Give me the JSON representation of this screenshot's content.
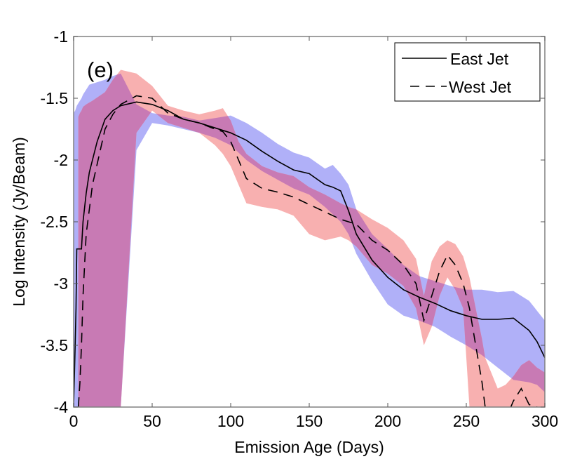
{
  "chart_data": {
    "type": "line",
    "panel_label": "(e)",
    "title": "",
    "xlabel": "Emission Age (Days)",
    "ylabel": "Log Intensity (Jy/Beam)",
    "xlim": [
      0,
      300
    ],
    "ylim": [
      -4,
      -1
    ],
    "xticks": [
      0,
      50,
      100,
      150,
      200,
      250,
      300
    ],
    "xtick_labels": [
      "0",
      "50",
      "100",
      "150",
      "200",
      "250",
      "300"
    ],
    "yticks": [
      -1,
      -1.5,
      -2,
      -2.5,
      -3,
      -3.5,
      -4
    ],
    "ytick_labels": [
      "-1",
      "-1.5",
      "-2",
      "-2.5",
      "-3",
      "-3.5",
      "-4"
    ],
    "grid": false,
    "legend": {
      "position": "top-right",
      "entries": [
        {
          "label": "East Jet",
          "style": "solid"
        },
        {
          "label": "West Jet",
          "style": "dashed"
        }
      ]
    },
    "colors": {
      "east_band": "#b0b0f8",
      "west_band": "#f8b0b0",
      "overlap": "#c87ab4",
      "line": "#000000",
      "axis": "#808080"
    },
    "series": [
      {
        "name": "East Jet",
        "style": "solid",
        "x": [
          0,
          1,
          1.5,
          2,
          5,
          6,
          8,
          10,
          15,
          20,
          25,
          30,
          40,
          50,
          60,
          70,
          80,
          90,
          100,
          110,
          120,
          130,
          140,
          150,
          160,
          165,
          170,
          175,
          180,
          190,
          200,
          210,
          220,
          230,
          240,
          250,
          260,
          270,
          280,
          290,
          295,
          300
        ],
        "y": [
          -4.0,
          -3.5,
          -3.2,
          -2.72,
          -2.72,
          -2.5,
          -2.27,
          -2.1,
          -1.85,
          -1.67,
          -1.6,
          -1.56,
          -1.53,
          -1.55,
          -1.6,
          -1.67,
          -1.7,
          -1.74,
          -1.78,
          -1.84,
          -1.93,
          -2.01,
          -2.08,
          -2.11,
          -2.2,
          -2.22,
          -2.25,
          -2.41,
          -2.6,
          -2.81,
          -2.95,
          -3.05,
          -3.11,
          -3.16,
          -3.22,
          -3.26,
          -3.29,
          -3.29,
          -3.28,
          -3.38,
          -3.47,
          -3.6
        ],
        "band_upper": [
          -1.62,
          -1.6,
          -1.58,
          -1.56,
          -1.5,
          -1.47,
          -1.43,
          -1.39,
          -1.37,
          -1.35,
          -1.32,
          -1.3,
          -1.55,
          -1.62,
          -1.64,
          -1.65,
          -1.68,
          -1.66,
          -1.64,
          -1.7,
          -1.78,
          -1.87,
          -1.94,
          -1.98,
          -2.07,
          -2.04,
          -2.11,
          -2.2,
          -2.4,
          -2.6,
          -2.72,
          -2.85,
          -2.94,
          -2.98,
          -3.02,
          -3.05,
          -3.05,
          -3.07,
          -3.06,
          -3.14,
          -3.22,
          -3.3
        ],
        "band_lower": [
          -4.0,
          -4.0,
          -4.0,
          -4.0,
          -4.0,
          -4.0,
          -4.0,
          -4.0,
          -4.0,
          -4.0,
          -4.0,
          -4.0,
          -1.92,
          -1.7,
          -1.72,
          -1.75,
          -1.78,
          -1.82,
          -1.88,
          -2.0,
          -2.09,
          -2.16,
          -2.23,
          -2.28,
          -2.38,
          -2.44,
          -2.5,
          -2.6,
          -2.76,
          -2.98,
          -3.17,
          -3.26,
          -3.3,
          -3.35,
          -3.43,
          -3.5,
          -3.58,
          -3.68,
          -3.78,
          -3.8,
          -3.82,
          -3.88
        ]
      },
      {
        "name": "West Jet",
        "style": "dashed",
        "x": [
          3,
          4,
          5,
          6,
          8,
          12,
          20,
          25,
          30,
          40,
          50,
          60,
          70,
          80,
          90,
          95,
          100,
          105,
          110,
          120,
          130,
          140,
          150,
          160,
          170,
          175,
          180,
          190,
          200,
          210,
          218,
          223,
          228,
          233,
          238,
          243,
          248,
          252,
          256,
          260,
          262,
          270,
          275,
          280,
          285,
          290,
          295,
          300
        ],
        "y": [
          -4.0,
          -3.8,
          -3.5,
          -3.1,
          -2.6,
          -2.2,
          -1.75,
          -1.63,
          -1.55,
          -1.48,
          -1.5,
          -1.62,
          -1.67,
          -1.7,
          -1.75,
          -1.77,
          -1.85,
          -2.0,
          -2.15,
          -2.23,
          -2.26,
          -2.3,
          -2.36,
          -2.42,
          -2.48,
          -2.5,
          -2.52,
          -2.65,
          -2.73,
          -2.85,
          -3.0,
          -3.3,
          -3.1,
          -2.9,
          -2.77,
          -2.85,
          -3.0,
          -3.2,
          -3.5,
          -3.8,
          -4.0,
          -4.2,
          -4.1,
          -3.95,
          -3.85,
          -3.98,
          -4.0,
          -4.05
        ],
        "band_upper": [
          -1.65,
          -1.62,
          -1.6,
          -1.57,
          -1.55,
          -1.52,
          -1.45,
          -1.35,
          -1.27,
          -1.3,
          -1.4,
          -1.56,
          -1.6,
          -1.63,
          -1.6,
          -1.58,
          -1.68,
          -1.85,
          -1.95,
          -2.05,
          -2.1,
          -2.13,
          -2.22,
          -2.28,
          -2.35,
          -2.38,
          -2.4,
          -2.48,
          -2.55,
          -2.65,
          -2.8,
          -3.1,
          -2.82,
          -2.7,
          -2.65,
          -2.68,
          -2.78,
          -2.95,
          -3.2,
          -3.45,
          -3.6,
          -3.85,
          -3.82,
          -3.75,
          -3.66,
          -3.62,
          -3.68,
          -3.72
        ],
        "band_lower": [
          -4.0,
          -4.0,
          -4.0,
          -4.0,
          -4.0,
          -4.0,
          -4.0,
          -4.0,
          -4.0,
          -1.78,
          -1.6,
          -1.7,
          -1.74,
          -1.78,
          -1.88,
          -1.95,
          -2.05,
          -2.2,
          -2.35,
          -2.38,
          -2.4,
          -2.45,
          -2.6,
          -2.65,
          -2.62,
          -2.65,
          -2.7,
          -2.85,
          -2.92,
          -3.02,
          -3.2,
          -3.5,
          -3.35,
          -3.1,
          -2.95,
          -3.05,
          -3.2,
          -4.0,
          -4.0,
          -4.0,
          -4.0,
          -4.0,
          -4.0,
          -4.0,
          -4.0,
          -4.0,
          -4.0,
          -4.0
        ]
      }
    ]
  }
}
